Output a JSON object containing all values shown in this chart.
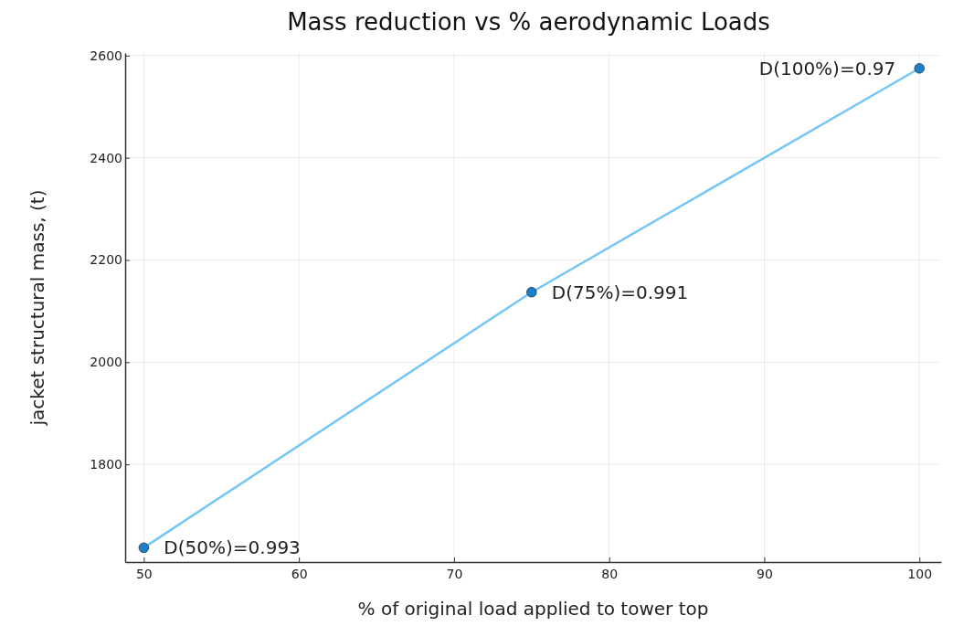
{
  "chart_data": {
    "type": "line",
    "title": "Mass reduction vs % aerodynamic Loads",
    "xlabel": "% of original load applied to tower top",
    "ylabel": "jacket structural mass, (t)",
    "x": [
      50,
      75,
      100
    ],
    "series": [
      {
        "color": "#74c6f7",
        "marker": "none",
        "values": [
          1637,
          2137,
          2575
        ]
      },
      {
        "type": "scatter",
        "color": "#1a7fcc",
        "marker": "circle",
        "values": [
          1637,
          2137,
          2575
        ]
      }
    ],
    "xlim": [
      48.8,
      101.4
    ],
    "xticks": [
      50,
      60,
      70,
      80,
      90,
      100
    ],
    "ylim": [
      1609,
      2605
    ],
    "yticks": [
      1800,
      2000,
      2200,
      2400,
      2600
    ],
    "grid": true,
    "annotations": [
      {
        "text": "D(50%)=0.993",
        "x": 50,
        "y": 1637
      },
      {
        "text": "D(75%)=0.991",
        "x": 75,
        "y": 2137
      },
      {
        "text": "D(100%)=0.97",
        "x": 100,
        "y": 2575
      }
    ]
  }
}
